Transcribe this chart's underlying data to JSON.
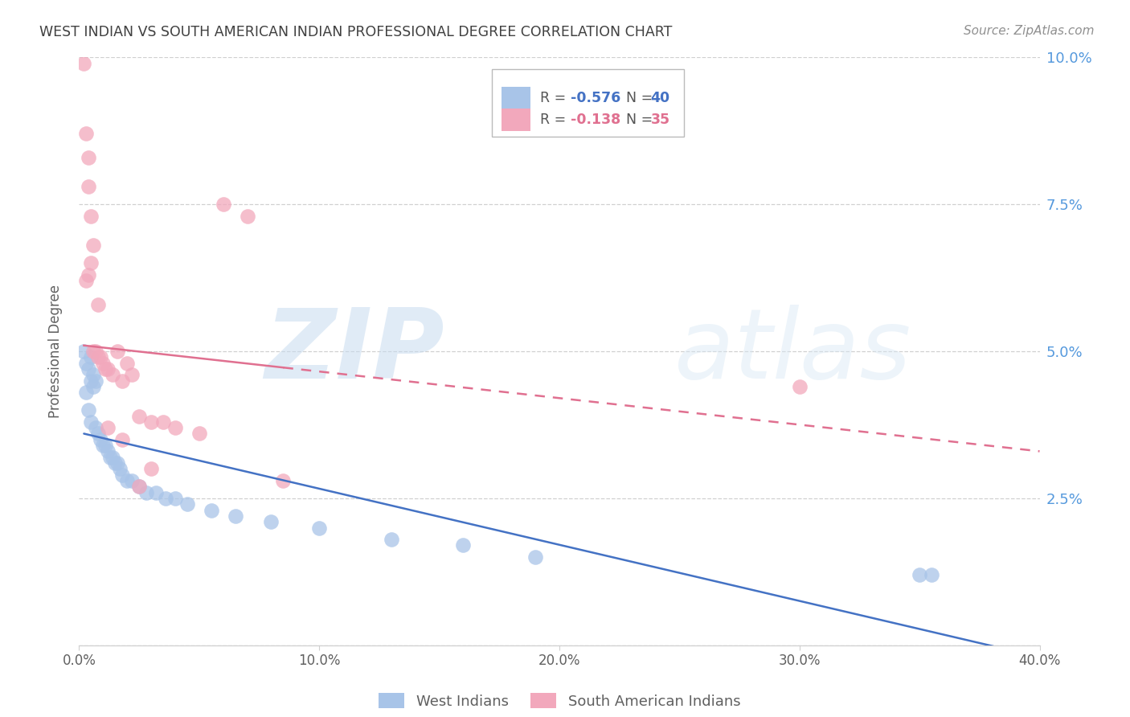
{
  "title": "WEST INDIAN VS SOUTH AMERICAN INDIAN PROFESSIONAL DEGREE CORRELATION CHART",
  "source": "Source: ZipAtlas.com",
  "ylabel": "Professional Degree",
  "watermark_zip": "ZIP",
  "watermark_atlas": "atlas",
  "xlim": [
    0.0,
    0.4
  ],
  "ylim": [
    0.0,
    0.1
  ],
  "xticks": [
    0.0,
    0.1,
    0.2,
    0.3,
    0.4
  ],
  "yticks": [
    0.0,
    0.025,
    0.05,
    0.075,
    0.1
  ],
  "legend_blue_R": "-0.576",
  "legend_blue_N": "40",
  "legend_pink_R": "-0.138",
  "legend_pink_N": "35",
  "blue_color": "#a8c4e8",
  "pink_color": "#f2a8bc",
  "blue_line_color": "#4472c4",
  "pink_line_color": "#e07090",
  "grid_color": "#d0d0d0",
  "background_color": "#ffffff",
  "title_color": "#404040",
  "source_color": "#909090",
  "axis_label_color": "#606060",
  "right_axis_color": "#5599dd",
  "blue_scatter_x": [
    0.002,
    0.003,
    0.004,
    0.005,
    0.005,
    0.005,
    0.006,
    0.006,
    0.007,
    0.007,
    0.008,
    0.009,
    0.01,
    0.011,
    0.012,
    0.013,
    0.014,
    0.015,
    0.016,
    0.017,
    0.018,
    0.02,
    0.022,
    0.025,
    0.028,
    0.032,
    0.036,
    0.04,
    0.045,
    0.055,
    0.065,
    0.08,
    0.1,
    0.13,
    0.16,
    0.19,
    0.35,
    0.355,
    0.003,
    0.004
  ],
  "blue_scatter_y": [
    0.05,
    0.048,
    0.047,
    0.049,
    0.045,
    0.038,
    0.046,
    0.044,
    0.045,
    0.037,
    0.036,
    0.035,
    0.034,
    0.034,
    0.033,
    0.032,
    0.032,
    0.031,
    0.031,
    0.03,
    0.029,
    0.028,
    0.028,
    0.027,
    0.026,
    0.026,
    0.025,
    0.025,
    0.024,
    0.023,
    0.022,
    0.021,
    0.02,
    0.018,
    0.017,
    0.015,
    0.012,
    0.012,
    0.043,
    0.04
  ],
  "pink_scatter_x": [
    0.002,
    0.003,
    0.004,
    0.004,
    0.005,
    0.005,
    0.006,
    0.007,
    0.008,
    0.009,
    0.01,
    0.011,
    0.012,
    0.014,
    0.016,
    0.018,
    0.02,
    0.022,
    0.025,
    0.03,
    0.035,
    0.04,
    0.05,
    0.06,
    0.07,
    0.085,
    0.003,
    0.004,
    0.006,
    0.008,
    0.012,
    0.018,
    0.025,
    0.03,
    0.3
  ],
  "pink_scatter_y": [
    0.099,
    0.087,
    0.083,
    0.078,
    0.073,
    0.065,
    0.05,
    0.05,
    0.049,
    0.049,
    0.048,
    0.047,
    0.047,
    0.046,
    0.05,
    0.045,
    0.048,
    0.046,
    0.039,
    0.038,
    0.038,
    0.037,
    0.036,
    0.075,
    0.073,
    0.028,
    0.062,
    0.063,
    0.068,
    0.058,
    0.037,
    0.035,
    0.027,
    0.03,
    0.044
  ],
  "figsize": [
    14.06,
    8.92
  ],
  "dpi": 100
}
